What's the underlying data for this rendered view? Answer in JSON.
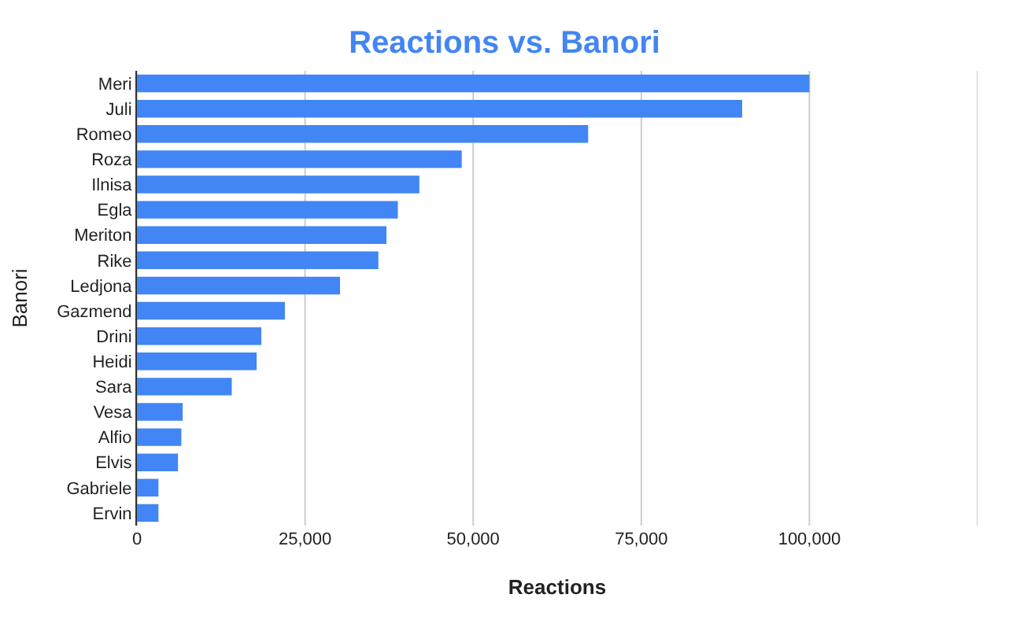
{
  "chart_data": {
    "type": "bar",
    "orientation": "horizontal",
    "title": "Reactions vs. Banori",
    "xlabel": "Reactions",
    "ylabel": "Banori",
    "categories": [
      "Meri",
      "Juli",
      "Romeo",
      "Roza",
      "Ilnisa",
      "Egla",
      "Meriton",
      "Rike",
      "Ledjona",
      "Gazmend",
      "Drini",
      "Heidi",
      "Sara",
      "Vesa",
      "Alfio",
      "Elvis",
      "Gabriele",
      "Ervin"
    ],
    "values": [
      100000,
      90000,
      67100,
      48300,
      42000,
      38800,
      37100,
      35900,
      30200,
      22000,
      18500,
      17800,
      14100,
      6800,
      6600,
      6100,
      3200,
      3200
    ],
    "color": "#4285f4",
    "xlim": [
      0,
      125000
    ],
    "xticks": [
      {
        "value": 0,
        "label": "0"
      },
      {
        "value": 25000,
        "label": "25,000"
      },
      {
        "value": 50000,
        "label": "50,000"
      },
      {
        "value": 75000,
        "label": "75,000"
      },
      {
        "value": 100000,
        "label": "100,000"
      },
      {
        "value": 125000,
        "label": null
      }
    ],
    "grid": "x"
  }
}
